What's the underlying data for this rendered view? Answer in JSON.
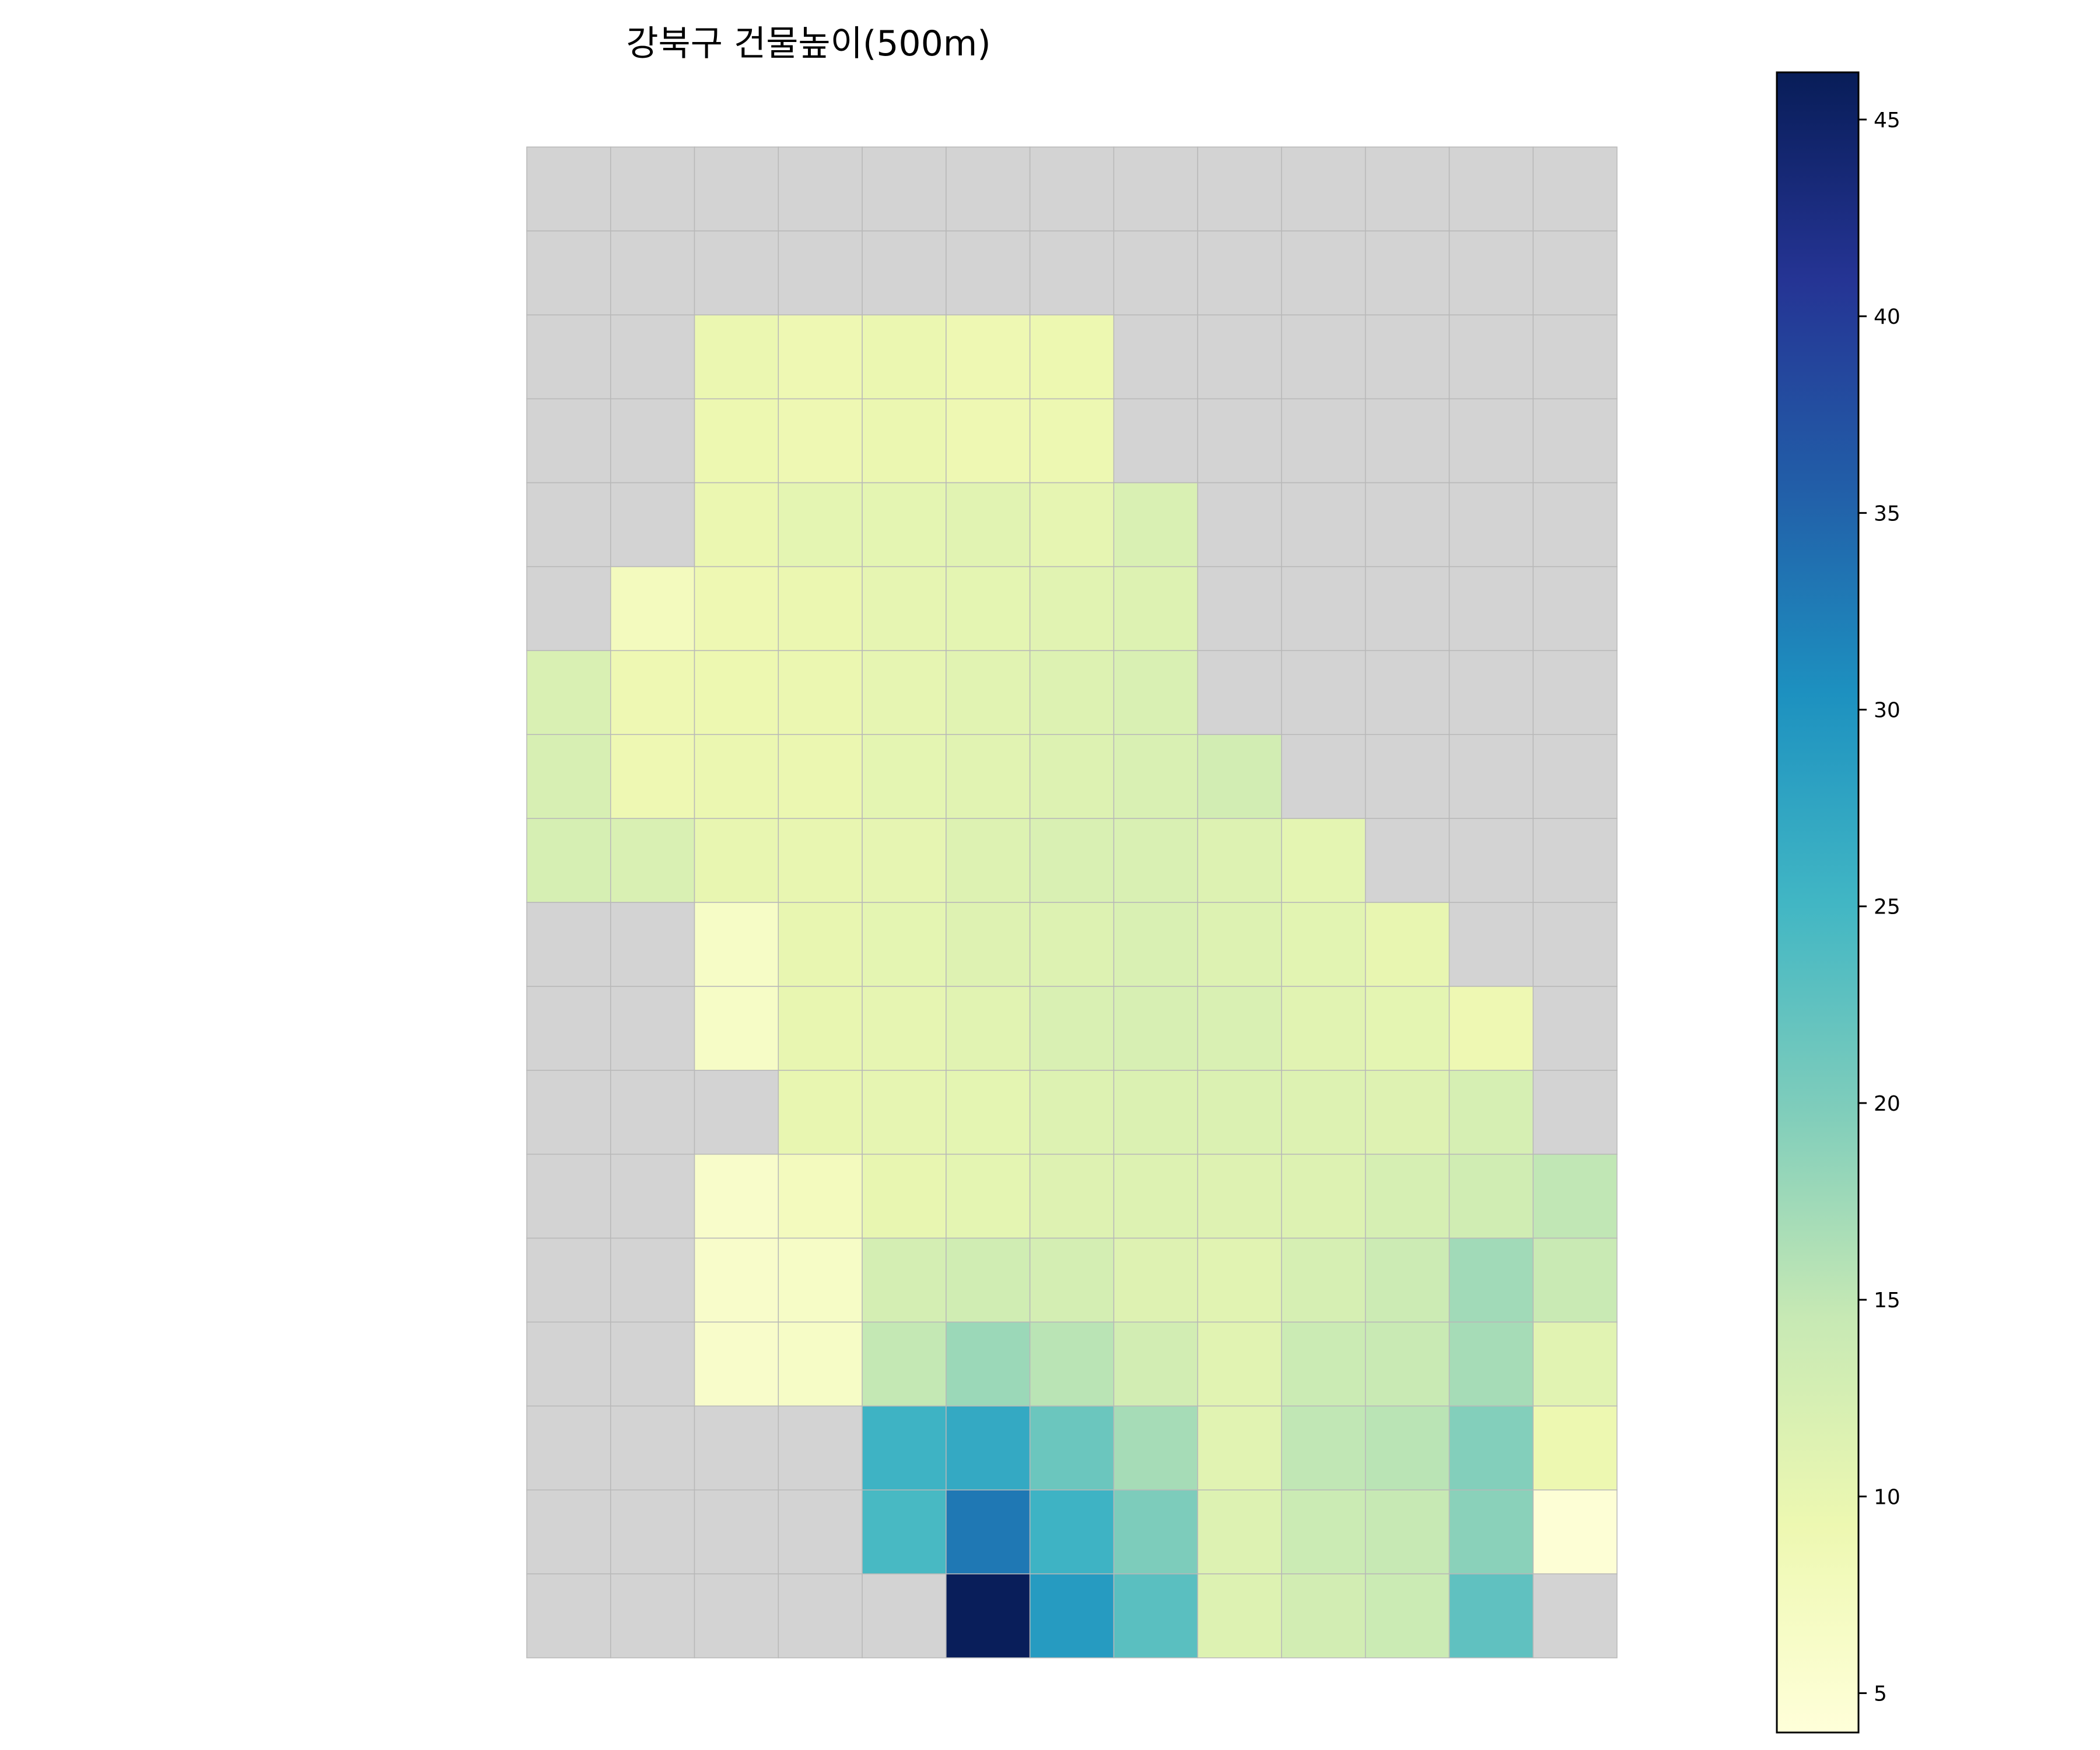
{
  "chart_data": {
    "type": "heatmap",
    "title": "강북구 건물높이(500m)",
    "xlabel": "",
    "ylabel": "",
    "grid": "on",
    "n_cols": 13,
    "n_rows": 18,
    "missing_color": "#d3d3d3",
    "colormap": "YlGnBu",
    "colorbar": {
      "position": "right",
      "min": 4,
      "max": 46.2,
      "ticks": [
        5,
        10,
        15,
        20,
        25,
        30,
        35,
        40,
        45
      ],
      "tick_labels": [
        "5",
        "10",
        "15",
        "20",
        "25",
        "30",
        "35",
        "40",
        "45"
      ]
    },
    "values": [
      [
        null,
        null,
        null,
        null,
        null,
        null,
        null,
        null,
        null,
        null,
        null,
        null,
        null
      ],
      [
        null,
        null,
        null,
        null,
        null,
        null,
        null,
        null,
        null,
        null,
        null,
        null,
        null
      ],
      [
        null,
        null,
        9.5,
        9.0,
        9.5,
        9.0,
        9.3,
        null,
        null,
        null,
        null,
        null,
        null
      ],
      [
        null,
        null,
        9.3,
        9.0,
        9.5,
        9.0,
        9.2,
        null,
        null,
        null,
        null,
        null,
        null
      ],
      [
        null,
        null,
        9.5,
        10.5,
        10.5,
        11.0,
        10.3,
        12.0,
        null,
        null,
        null,
        null,
        null
      ],
      [
        null,
        7.5,
        9.0,
        9.5,
        10.3,
        10.5,
        11.0,
        11.5,
        null,
        null,
        null,
        null,
        null
      ],
      [
        12.0,
        9.0,
        9.3,
        9.5,
        10.3,
        11.0,
        11.5,
        12.0,
        null,
        null,
        null,
        null,
        null
      ],
      [
        12.3,
        9.0,
        9.5,
        9.5,
        10.5,
        11.0,
        11.5,
        12.0,
        13.0,
        null,
        null,
        null,
        null
      ],
      [
        12.5,
        12.0,
        10.0,
        10.0,
        10.3,
        11.5,
        12.0,
        12.0,
        11.5,
        10.5,
        null,
        null,
        null
      ],
      [
        null,
        null,
        6.5,
        10.0,
        10.5,
        11.3,
        11.5,
        12.0,
        11.5,
        10.8,
        10.0,
        null,
        null
      ],
      [
        null,
        null,
        6.5,
        10.0,
        10.3,
        11.0,
        12.0,
        12.3,
        12.0,
        11.0,
        10.5,
        9.0,
        null
      ],
      [
        null,
        null,
        null,
        10.0,
        10.3,
        10.5,
        11.5,
        11.8,
        11.8,
        11.5,
        11.3,
        12.5,
        null
      ],
      [
        null,
        null,
        6.0,
        7.5,
        10.0,
        10.5,
        11.3,
        11.5,
        11.3,
        11.5,
        12.5,
        13.3,
        15.0
      ],
      [
        null,
        null,
        6.0,
        6.5,
        12.8,
        13.3,
        12.8,
        11.3,
        11.0,
        12.5,
        13.8,
        17.3,
        14.3
      ],
      [
        null,
        null,
        6.0,
        6.5,
        14.8,
        17.8,
        15.5,
        13.0,
        11.0,
        14.0,
        14.3,
        17.0,
        11.0
      ],
      [
        null,
        null,
        null,
        null,
        25.5,
        27.0,
        21.5,
        17.0,
        11.0,
        15.0,
        15.5,
        19.5,
        9.3
      ],
      [
        null,
        null,
        null,
        null,
        24.5,
        33.0,
        25.5,
        20.0,
        11.5,
        14.0,
        14.5,
        19.0,
        4.5
      ],
      [
        null,
        null,
        null,
        null,
        null,
        46.0,
        29.0,
        23.0,
        11.5,
        13.0,
        14.0,
        22.5,
        null
      ]
    ]
  }
}
